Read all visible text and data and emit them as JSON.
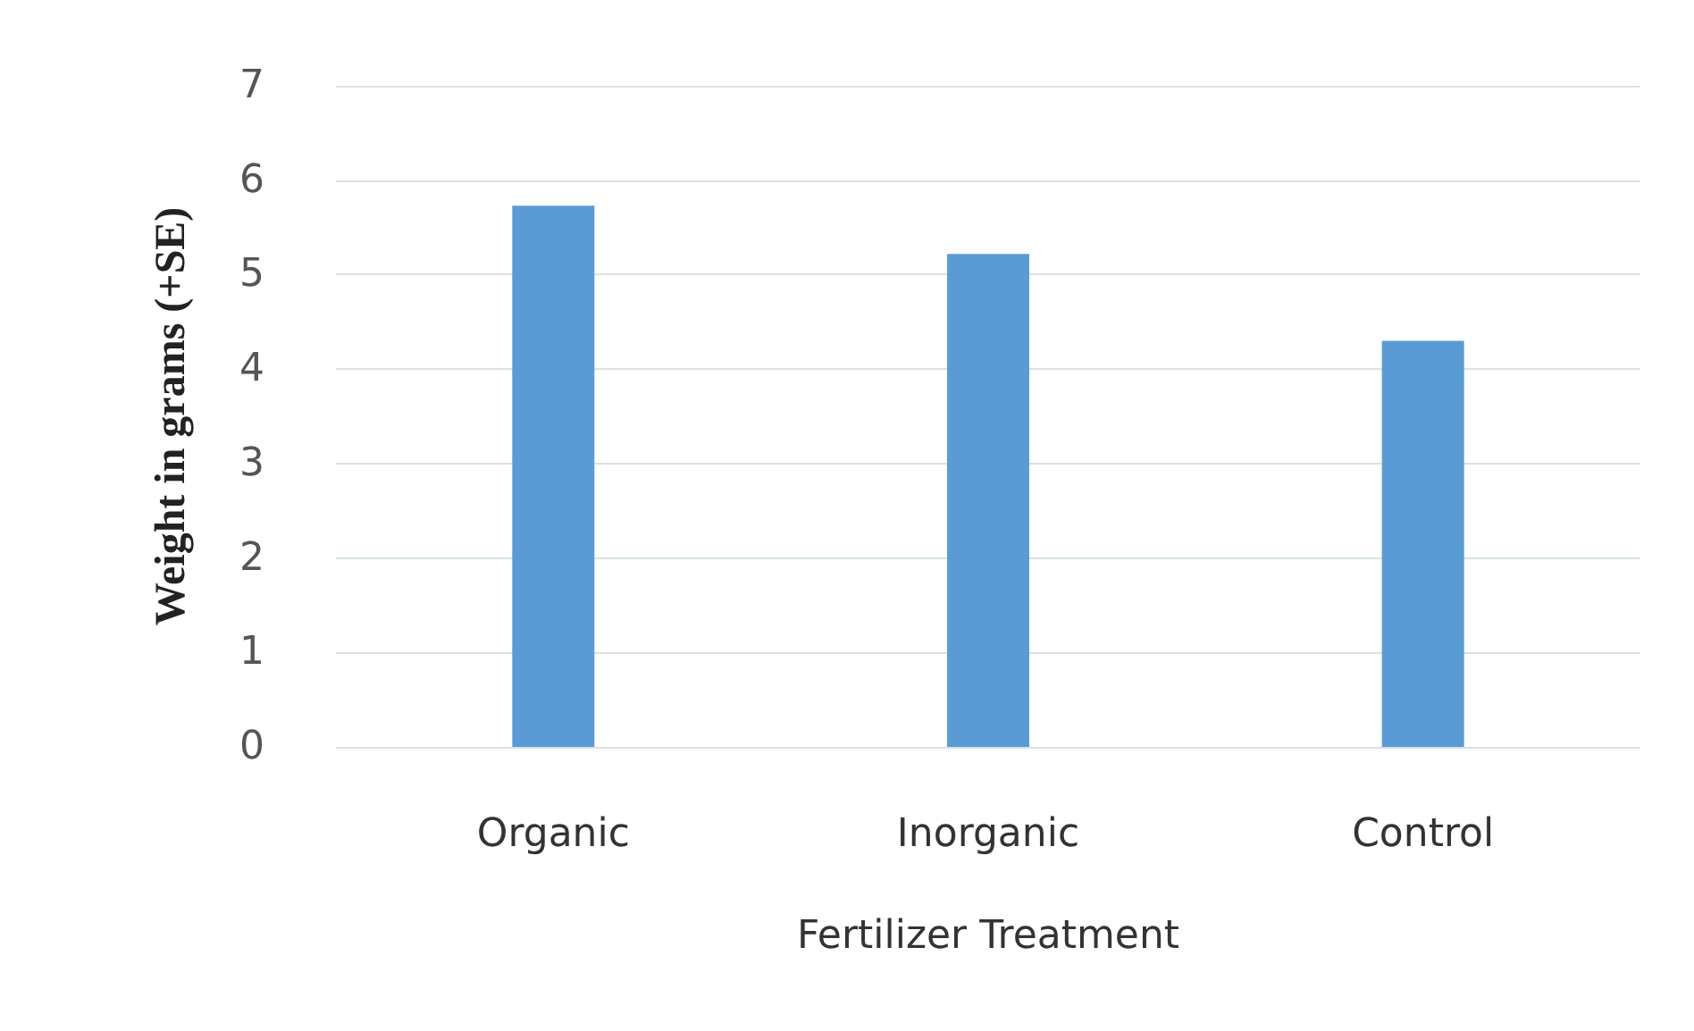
{
  "chart_data": {
    "type": "bar",
    "xlabel": "Fertilizer Treatment",
    "ylabel": "Weight in grams (+SE)",
    "categories": [
      "Organic",
      "Inorganic",
      "Control"
    ],
    "values": [
      5.73,
      5.22,
      4.3
    ],
    "color": "#5b9bd5",
    "ylim": [
      0,
      7
    ],
    "yticks": [
      0,
      1,
      2,
      3,
      4,
      5,
      6,
      7
    ],
    "grid": "y"
  }
}
